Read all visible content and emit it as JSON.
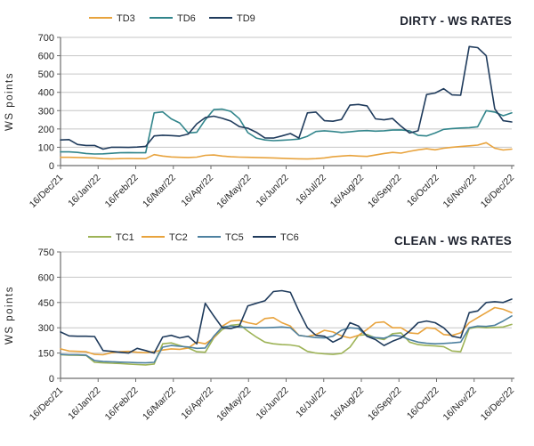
{
  "page": {
    "background": "#ffffff"
  },
  "chart_data": [
    {
      "type": "line",
      "title": "DIRTY - WS RATES",
      "ylabel": "WS points",
      "ylim": [
        0,
        700
      ],
      "ystep": 100,
      "grid": true,
      "legend_position": "top",
      "x_ticks": [
        "16/Dec/21",
        "16/Jan/22",
        "16/Feb/22",
        "16/Mar/22",
        "16/Apr/22",
        "16/May/22",
        "16/Jun/22",
        "16/Jul/22",
        "16/Aug/22",
        "16/Sep/22",
        "16/Oct/22",
        "16/Nov/22",
        "16/Dec/22"
      ],
      "series": [
        {
          "name": "TD3",
          "color": "#E8A33D",
          "values": [
            45,
            45,
            44,
            43,
            42,
            38,
            37,
            38,
            39,
            38,
            38,
            60,
            52,
            47,
            45,
            44,
            46,
            56,
            58,
            52,
            48,
            46,
            45,
            44,
            43,
            42,
            40,
            38,
            37,
            36,
            38,
            42,
            48,
            52,
            55,
            52,
            50,
            58,
            66,
            72,
            68,
            78,
            86,
            92,
            86,
            95,
            100,
            104,
            108,
            112,
            125,
            95,
            85,
            90
          ]
        },
        {
          "name": "TD6",
          "color": "#31858B",
          "values": [
            75,
            75,
            72,
            66,
            63,
            64,
            67,
            70,
            71,
            70,
            70,
            288,
            293,
            255,
            233,
            178,
            182,
            250,
            306,
            308,
            296,
            256,
            180,
            150,
            140,
            136,
            138,
            141,
            145,
            160,
            186,
            190,
            186,
            181,
            184,
            189,
            191,
            188,
            190,
            194,
            195,
            190,
            165,
            162,
            178,
            198,
            202,
            205,
            207,
            212,
            300,
            292,
            272,
            288
          ]
        },
        {
          "name": "TD9",
          "color": "#1F3B5C",
          "values": [
            140,
            142,
            115,
            110,
            110,
            90,
            100,
            100,
            99,
            101,
            105,
            162,
            166,
            164,
            161,
            172,
            228,
            262,
            270,
            258,
            243,
            213,
            204,
            182,
            151,
            150,
            162,
            175,
            150,
            288,
            292,
            245,
            242,
            252,
            330,
            334,
            326,
            255,
            250,
            257,
            215,
            178,
            190,
            388,
            396,
            420,
            386,
            384,
            650,
            644,
            600,
            310,
            245,
            238
          ]
        }
      ]
    },
    {
      "type": "line",
      "title": "CLEAN - WS RATES",
      "ylabel": "WS points",
      "ylim": [
        0,
        750
      ],
      "ystep": 150,
      "grid": true,
      "legend_position": "top",
      "x_ticks": [
        "16/Dec/21",
        "16/Jan/22",
        "16/Feb/22",
        "16/Mar/22",
        "16/Apr/22",
        "16/May/22",
        "16/Jun/22",
        "16/Jul/22",
        "16/Aug/22",
        "16/Sep/22",
        "16/Oct/22",
        "16/Nov/22",
        "16/Dec/22"
      ],
      "series": [
        {
          "name": "TC1",
          "color": "#9DB356",
          "values": [
            140,
            138,
            137,
            136,
            95,
            92,
            90,
            88,
            85,
            82,
            80,
            85,
            205,
            210,
            195,
            180,
            158,
            155,
            240,
            290,
            315,
            320,
            280,
            245,
            215,
            205,
            200,
            198,
            190,
            160,
            150,
            145,
            142,
            148,
            185,
            255,
            260,
            240,
            230,
            265,
            270,
            215,
            200,
            195,
            192,
            188,
            162,
            158,
            295,
            305,
            300,
            302,
            305,
            320
          ]
        },
        {
          "name": "TC2",
          "color": "#E8A33D",
          "values": [
            175,
            162,
            160,
            158,
            142,
            140,
            152,
            158,
            160,
            155,
            152,
            158,
            168,
            175,
            172,
            180,
            215,
            205,
            240,
            310,
            340,
            345,
            330,
            320,
            355,
            360,
            330,
            310,
            255,
            248,
            260,
            285,
            275,
            252,
            240,
            255,
            290,
            330,
            335,
            300,
            300,
            270,
            265,
            300,
            295,
            260,
            255,
            270,
            330,
            360,
            390,
            420,
            410,
            390
          ]
        },
        {
          "name": "TC5",
          "color": "#4E81A0",
          "values": [
            142,
            140,
            140,
            138,
            105,
            100,
            98,
            96,
            95,
            93,
            92,
            95,
            185,
            195,
            190,
            186,
            178,
            180,
            250,
            305,
            310,
            305,
            302,
            300,
            300,
            302,
            305,
            300,
            255,
            248,
            242,
            240,
            250,
            285,
            300,
            295,
            250,
            242,
            238,
            255,
            250,
            230,
            215,
            208,
            205,
            207,
            210,
            215,
            300,
            310,
            308,
            315,
            340,
            370
          ]
        },
        {
          "name": "TC6",
          "color": "#1F3B5C",
          "values": [
            275,
            252,
            250,
            250,
            248,
            165,
            160,
            155,
            150,
            178,
            165,
            150,
            245,
            255,
            240,
            250,
            205,
            445,
            370,
            300,
            295,
            310,
            430,
            445,
            460,
            515,
            520,
            510,
            400,
            300,
            255,
            250,
            215,
            240,
            330,
            310,
            250,
            230,
            195,
            220,
            240,
            280,
            330,
            340,
            330,
            300,
            250,
            240,
            390,
            400,
            450,
            455,
            450,
            470
          ]
        }
      ]
    }
  ]
}
